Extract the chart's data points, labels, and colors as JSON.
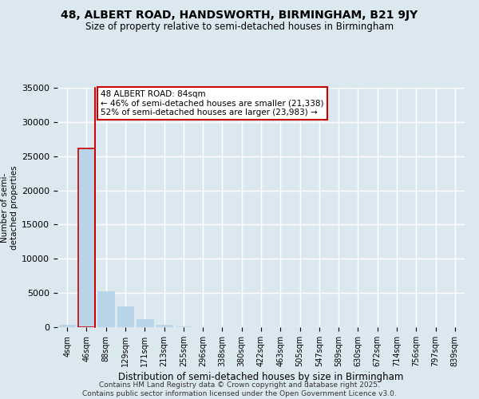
{
  "title": "48, ALBERT ROAD, HANDSWORTH, BIRMINGHAM, B21 9JY",
  "subtitle": "Size of property relative to semi-detached houses in Birmingham",
  "xlabel": "Distribution of semi-detached houses by size in Birmingham",
  "ylabel": "Number of semi-\ndetached properties",
  "bar_labels": [
    "4sqm",
    "46sqm",
    "88sqm",
    "129sqm",
    "171sqm",
    "213sqm",
    "255sqm",
    "296sqm",
    "338sqm",
    "380sqm",
    "422sqm",
    "463sqm",
    "505sqm",
    "547sqm",
    "589sqm",
    "630sqm",
    "672sqm",
    "714sqm",
    "756sqm",
    "797sqm",
    "839sqm"
  ],
  "bar_values": [
    300,
    26100,
    5200,
    3050,
    1200,
    400,
    100,
    0,
    0,
    0,
    0,
    0,
    0,
    0,
    0,
    0,
    0,
    0,
    0,
    0,
    0
  ],
  "bar_color": "#b8d4e8",
  "highlight_bar_index": 1,
  "highlight_color": "#cc0000",
  "vline_color": "#cc0000",
  "annotation_title": "48 ALBERT ROAD: 84sqm",
  "annotation_line1": "← 46% of semi-detached houses are smaller (21,338)",
  "annotation_line2": "52% of semi-detached houses are larger (23,983) →",
  "annotation_box_color": "#ffffff",
  "annotation_box_edge": "#cc0000",
  "ylim": [
    0,
    35000
  ],
  "yticks": [
    0,
    5000,
    10000,
    15000,
    20000,
    25000,
    30000,
    35000
  ],
  "background_color": "#dce8f0",
  "grid_color": "#ffffff",
  "footer_line1": "Contains HM Land Registry data © Crown copyright and database right 2025.",
  "footer_line2": "Contains public sector information licensed under the Open Government Licence v3.0."
}
